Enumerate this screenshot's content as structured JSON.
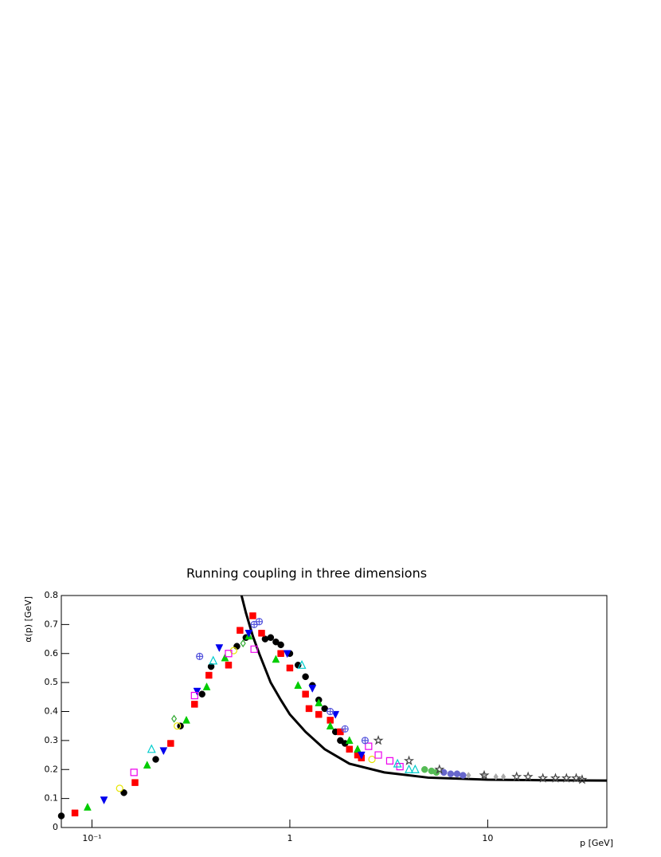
{
  "chart_data": {
    "type": "scatter",
    "title": "Running coupling in three dimensions",
    "x_label": "p [GeV]",
    "y_label": "α(p) [GeV]",
    "log_x": true,
    "xlim": [
      0.07,
      40
    ],
    "ylim": [
      0,
      0.8
    ],
    "xticks": [
      {
        "value": 0.1,
        "label": "10⁻¹"
      },
      1,
      10
    ],
    "yticks": [
      0,
      0.1,
      0.2,
      0.3,
      0.4,
      0.5,
      0.6,
      0.7,
      0.8
    ],
    "series": [
      {
        "marker": "line",
        "color": "#000000",
        "x": [
          0.57,
          0.6,
          0.65,
          0.7,
          0.8,
          0.9,
          1.0,
          1.2,
          1.5,
          2,
          3,
          5,
          10,
          20,
          40
        ],
        "values": [
          0.8,
          0.74,
          0.66,
          0.6,
          0.5,
          0.44,
          0.39,
          0.33,
          0.27,
          0.22,
          0.19,
          0.172,
          0.165,
          0.163,
          0.162
        ]
      },
      {
        "marker": "circle",
        "color": "#000000",
        "x": [
          0.07,
          0.145,
          0.21,
          0.28,
          0.36,
          0.4,
          0.54,
          0.6,
          0.75,
          0.8,
          0.85,
          0.9,
          1.0,
          1.1,
          1.2,
          1.3,
          1.4,
          1.5,
          1.7,
          1.8,
          1.9
        ],
        "values": [
          0.04,
          0.12,
          0.235,
          0.35,
          0.46,
          0.555,
          0.625,
          0.655,
          0.65,
          0.655,
          0.64,
          0.63,
          0.6,
          0.56,
          0.52,
          0.49,
          0.44,
          0.41,
          0.33,
          0.3,
          0.29
        ]
      },
      {
        "marker": "square",
        "color": "#ff0000",
        "x": [
          0.082,
          0.165,
          0.25,
          0.33,
          0.39,
          0.49,
          0.56,
          0.65,
          0.72,
          0.9,
          1.0,
          1.2,
          1.25,
          1.4,
          1.6,
          1.8,
          2.0,
          2.2,
          2.3
        ],
        "values": [
          0.05,
          0.155,
          0.29,
          0.425,
          0.525,
          0.56,
          0.68,
          0.73,
          0.67,
          0.6,
          0.55,
          0.46,
          0.41,
          0.39,
          0.37,
          0.33,
          0.27,
          0.25,
          0.24
        ]
      },
      {
        "marker": "triangle-up",
        "color": "#00cc00",
        "x": [
          0.095,
          0.19,
          0.3,
          0.38,
          0.47,
          0.62,
          0.85,
          1.1,
          1.4,
          1.6,
          2.0,
          2.2
        ],
        "values": [
          0.07,
          0.215,
          0.37,
          0.485,
          0.585,
          0.66,
          0.58,
          0.49,
          0.43,
          0.35,
          0.3,
          0.27
        ]
      },
      {
        "marker": "triangle-down",
        "color": "#0000ee",
        "x": [
          0.115,
          0.23,
          0.34,
          0.44,
          0.62,
          0.97,
          1.3,
          1.7,
          2.3
        ],
        "values": [
          0.095,
          0.265,
          0.47,
          0.62,
          0.67,
          0.6,
          0.48,
          0.39,
          0.25
        ]
      },
      {
        "marker": "open-circle",
        "color": "#e6e600",
        "x": [
          0.138,
          0.27,
          0.52,
          2.6
        ],
        "values": [
          0.135,
          0.35,
          0.61,
          0.235
        ]
      },
      {
        "marker": "open-square",
        "color": "#ee00ee",
        "x": [
          0.163,
          0.33,
          0.49,
          0.66,
          2.5,
          2.8,
          3.2,
          3.6
        ],
        "values": [
          0.19,
          0.455,
          0.6,
          0.615,
          0.28,
          0.25,
          0.23,
          0.21
        ]
      },
      {
        "marker": "open-triangle",
        "color": "#00cccc",
        "x": [
          0.2,
          0.41,
          1.15,
          3.5,
          4.0,
          4.3
        ],
        "values": [
          0.27,
          0.575,
          0.56,
          0.22,
          0.2,
          0.2
        ]
      },
      {
        "marker": "open-diamond",
        "color": "#33aa33",
        "x": [
          0.26,
          0.58
        ],
        "values": [
          0.375,
          0.635
        ]
      },
      {
        "marker": "crossed-circle",
        "color": "#5555dd",
        "x": [
          0.35,
          0.66,
          0.7,
          1.6,
          1.9,
          2.4
        ],
        "values": [
          0.59,
          0.7,
          0.71,
          0.4,
          0.34,
          0.3
        ]
      },
      {
        "marker": "circle",
        "color": "#55bb55",
        "x": [
          4.8,
          5.2,
          5.5
        ],
        "values": [
          0.2,
          0.195,
          0.19
        ]
      },
      {
        "marker": "circle",
        "color": "#6666cc",
        "x": [
          6.0,
          6.5,
          7.0,
          7.5
        ],
        "values": [
          0.19,
          0.185,
          0.185,
          0.18
        ]
      },
      {
        "marker": "diamond",
        "color": "#aaaaaa",
        "x": [
          8,
          9.5,
          11,
          12
        ],
        "values": [
          0.18,
          0.18,
          0.175,
          0.175
        ]
      },
      {
        "marker": "star",
        "color": "#444444",
        "x": [
          2.8,
          4.0,
          5.7,
          9.6,
          14,
          16,
          19,
          22,
          25,
          28,
          30
        ],
        "values": [
          0.3,
          0.23,
          0.2,
          0.18,
          0.175,
          0.175,
          0.17,
          0.17,
          0.17,
          0.17,
          0.165
        ]
      }
    ]
  }
}
